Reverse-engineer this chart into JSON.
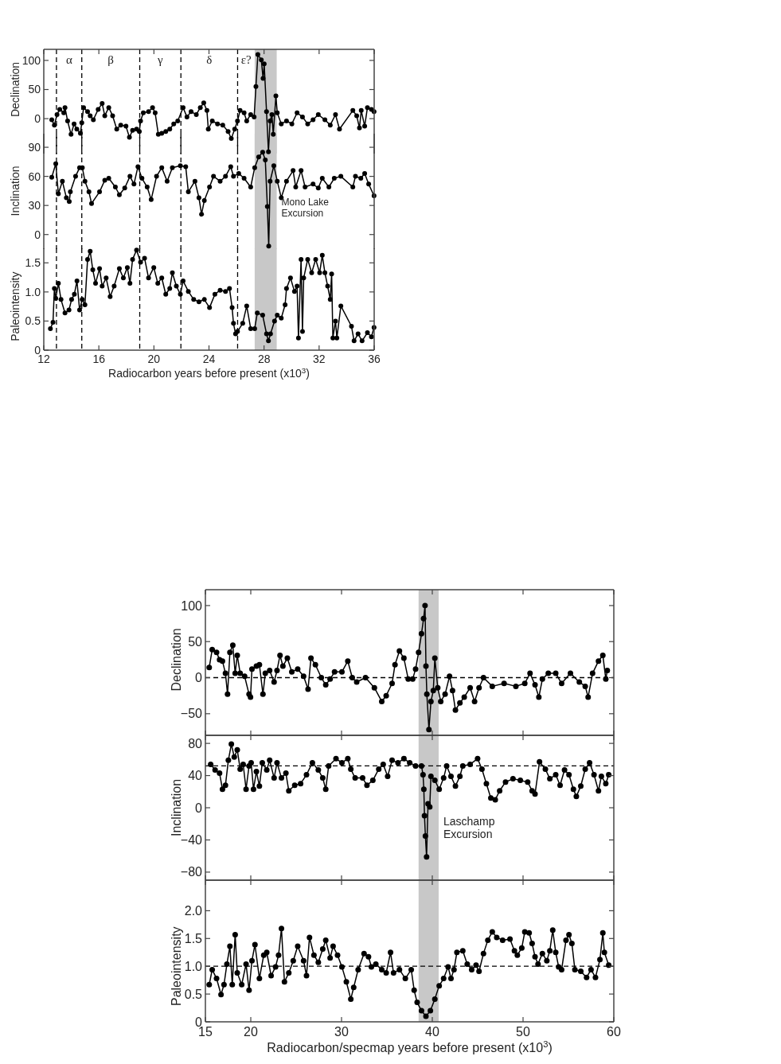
{
  "chart_data": [
    {
      "type": "line",
      "ylabel": "Declination",
      "xlim": [
        12,
        36
      ],
      "xticks": [
        12,
        16,
        20,
        24,
        28,
        32,
        36
      ],
      "ylim": [
        -60,
        119
      ],
      "yticks": [
        0,
        50,
        100
      ],
      "tick_labels": "y",
      "marker": "circle",
      "line_style": "solid",
      "color": "#000000",
      "x": [
        12.58,
        12.77,
        12.96,
        13.16,
        13.45,
        13.54,
        13.73,
        13.98,
        14.2,
        14.4,
        14.66,
        14.76,
        14.89,
        15.18,
        15.37,
        15.6,
        15.95,
        16.24,
        16.43,
        16.72,
        17.0,
        17.3,
        17.59,
        17.97,
        18.22,
        18.45,
        18.74,
        18.94,
        19.03,
        19.23,
        19.61,
        19.9,
        20.09,
        20.32,
        20.57,
        20.86,
        21.15,
        21.44,
        21.73,
        22.12,
        22.4,
        22.7,
        23.08,
        23.37,
        23.62,
        23.85,
        23.95,
        24.24,
        24.62,
        25.0,
        25.39,
        25.62,
        25.87,
        26.07,
        26.26,
        26.55,
        26.74,
        27.03,
        27.28,
        27.41,
        27.55,
        27.8,
        27.93,
        28.01,
        28.18,
        28.32,
        28.44,
        28.57,
        28.67,
        28.86,
        28.96,
        29.25,
        29.63,
        30.02,
        30.4,
        30.79,
        31.17,
        31.56,
        31.94,
        32.42,
        32.81,
        33.19,
        33.48,
        34.45,
        34.73,
        34.93,
        35.06,
        35.31,
        35.51,
        35.8,
        35.99
      ],
      "values": [
        -2,
        -11,
        7,
        16,
        10,
        19,
        -4,
        -27,
        -9,
        -18,
        -25,
        -7,
        19,
        12,
        5,
        -2,
        16,
        26,
        5,
        19,
        5,
        -18,
        -11,
        -13,
        -32,
        -20,
        -18,
        -22,
        -4,
        10,
        12,
        19,
        10,
        -27,
        -25,
        -22,
        -18,
        -9,
        -4,
        19,
        3,
        12,
        7,
        19,
        27,
        14,
        -18,
        -4,
        -9,
        -11,
        -22,
        -34,
        -18,
        -4,
        14,
        10,
        -4,
        7,
        3,
        55,
        110,
        101,
        69,
        94,
        12,
        -57,
        -4,
        7,
        -27,
        39,
        10,
        -9,
        -4,
        -9,
        10,
        3,
        -9,
        -2,
        7,
        -2,
        -11,
        7,
        -18,
        14,
        5,
        -16,
        14,
        -13,
        19,
        16,
        12
      ],
      "ref_lines": [
        {
          "axis": "x",
          "value": 12.92,
          "line_style": "dashed"
        },
        {
          "axis": "x",
          "value": 14.76,
          "line_style": "dashed"
        },
        {
          "axis": "x",
          "value": 18.97,
          "line_style": "dashed"
        },
        {
          "axis": "x",
          "value": 21.96,
          "line_style": "dashed"
        },
        {
          "axis": "x",
          "value": 26.08,
          "line_style": "dashed"
        }
      ],
      "bands": [
        {
          "axis": "x",
          "from": 27.32,
          "to": 28.92,
          "color": "#c8c8c8"
        }
      ],
      "annotations": [
        "α",
        "β",
        "γ",
        "δ",
        "ε?"
      ]
    },
    {
      "type": "line",
      "ylabel": "Inclination",
      "xlim": [
        12,
        36
      ],
      "xticks": [
        12,
        16,
        20,
        24,
        28,
        32,
        36
      ],
      "ylim": [
        -15,
        104
      ],
      "yticks": [
        0,
        30,
        60,
        90
      ],
      "tick_labels": "y",
      "marker": "circle",
      "line_style": "solid",
      "color": "#000000",
      "x": [
        12.58,
        12.87,
        13.06,
        13.35,
        13.64,
        13.85,
        13.93,
        14.31,
        14.6,
        14.8,
        14.99,
        15.28,
        15.47,
        16.05,
        16.43,
        16.72,
        17.2,
        17.49,
        17.88,
        18.26,
        18.55,
        18.84,
        19.13,
        19.51,
        19.8,
        20.19,
        20.57,
        20.96,
        21.34,
        21.92,
        22.31,
        22.5,
        22.98,
        23.27,
        23.46,
        23.66,
        24.04,
        24.33,
        24.81,
        25.2,
        25.58,
        25.78,
        26.16,
        26.55,
        27.03,
        27.32,
        27.61,
        27.9,
        28.09,
        28.24,
        28.34,
        28.44,
        28.71,
        28.96,
        29.25,
        29.63,
        30.11,
        30.3,
        30.69,
        30.98,
        31.56,
        31.94,
        32.23,
        32.71,
        33.1,
        33.58,
        34.45,
        34.64,
        35.03,
        35.31,
        35.6,
        35.99
      ],
      "values": [
        59,
        73,
        42,
        55,
        38,
        34,
        44,
        60,
        69,
        69,
        55,
        44,
        32,
        44,
        56,
        58,
        49,
        41,
        48,
        60,
        52,
        70,
        58,
        49,
        36,
        60,
        69,
        55,
        69,
        71,
        70,
        44,
        55,
        38,
        21,
        35,
        49,
        60,
        55,
        60,
        70,
        60,
        63,
        58,
        49,
        69,
        80,
        85,
        77,
        29,
        -12,
        55,
        71,
        55,
        38,
        55,
        66,
        49,
        66,
        49,
        52,
        48,
        58,
        49,
        58,
        60,
        49,
        60,
        58,
        63,
        52,
        40
      ],
      "ref_lines": [
        {
          "axis": "x",
          "value": 12.92,
          "line_style": "dashed"
        },
        {
          "axis": "x",
          "value": 14.76,
          "line_style": "dashed"
        },
        {
          "axis": "x",
          "value": 18.97,
          "line_style": "dashed"
        },
        {
          "axis": "x",
          "value": 21.96,
          "line_style": "dashed"
        },
        {
          "axis": "x",
          "value": 26.08,
          "line_style": "dashed"
        }
      ],
      "bands": [
        {
          "axis": "x",
          "from": 27.32,
          "to": 28.92,
          "color": "#c8c8c8"
        }
      ],
      "annotations": [
        "Mono Lake Excursion"
      ]
    },
    {
      "type": "line",
      "ylabel": "Paleointensity",
      "xlabel": "Radiocarbon years before present (x10$^{3}$)",
      "xlim": [
        12,
        36
      ],
      "xticks": [
        12,
        16,
        20,
        24,
        28,
        32,
        36
      ],
      "ylim": [
        0,
        1.75
      ],
      "yticks": [
        0,
        {
          "value": 0.5,
          "label": "0.5"
        },
        {
          "value": 1,
          "label": "1.0"
        },
        {
          "value": 1.5,
          "label": "1.5"
        }
      ],
      "marker": "circle",
      "line_style": "solid",
      "color": "#000000",
      "x": [
        12.48,
        12.67,
        12.77,
        12.87,
        13.06,
        13.25,
        13.54,
        13.83,
        14.02,
        14.22,
        14.41,
        14.6,
        14.79,
        14.99,
        15.18,
        15.37,
        15.56,
        15.76,
        16.05,
        16.24,
        16.53,
        16.82,
        17.11,
        17.49,
        17.78,
        18.07,
        18.26,
        18.45,
        18.74,
        19.03,
        19.32,
        19.61,
        19.99,
        20.28,
        20.57,
        20.86,
        21.15,
        21.34,
        21.63,
        21.92,
        22.12,
        22.5,
        22.89,
        23.27,
        23.66,
        24.04,
        24.43,
        24.81,
        25.2,
        25.49,
        25.68,
        25.78,
        25.93,
        26.07,
        26.45,
        26.74,
        27.03,
        27.32,
        27.51,
        27.9,
        28.18,
        28.32,
        28.47,
        28.76,
        28.96,
        29.25,
        29.53,
        29.63,
        29.92,
        30.21,
        30.4,
        30.5,
        30.69,
        30.79,
        30.88,
        31.17,
        31.46,
        31.75,
        32.04,
        32.23,
        32.42,
        32.62,
        32.81,
        32.91,
        33.0,
        33.19,
        33.29,
        33.58,
        34.35,
        34.54,
        34.83,
        35.12,
        35.51,
        35.8,
        35.99
      ],
      "values": [
        0.37,
        0.48,
        1.06,
        0.89,
        1.15,
        0.87,
        0.64,
        0.69,
        0.87,
        0.96,
        1.19,
        0.69,
        0.87,
        0.78,
        1.56,
        1.7,
        1.38,
        1.15,
        1.4,
        1.1,
        1.24,
        0.92,
        1.1,
        1.4,
        1.24,
        1.42,
        1.15,
        1.56,
        1.72,
        1.51,
        1.58,
        1.24,
        1.42,
        1.15,
        1.24,
        0.96,
        1.06,
        1.33,
        1.1,
        0.96,
        1.19,
        1.01,
        0.87,
        0.83,
        0.87,
        0.73,
        0.96,
        1.03,
        1.01,
        1.06,
        0.73,
        0.46,
        0.28,
        0.32,
        0.46,
        0.76,
        0.37,
        0.37,
        0.64,
        0.6,
        0.28,
        0.16,
        0.28,
        0.5,
        0.6,
        0.55,
        0.78,
        1.06,
        1.24,
        1.01,
        1.1,
        0.21,
        1.56,
        0.32,
        1.24,
        1.56,
        1.33,
        1.56,
        1.33,
        1.63,
        1.33,
        1.1,
        0.87,
        1.31,
        0.21,
        0.5,
        0.21,
        0.76,
        0.41,
        0.16,
        0.28,
        0.16,
        0.3,
        0.23,
        0.39
      ],
      "ref_lines": [
        {
          "axis": "x",
          "value": 12.92,
          "line_style": "dashed"
        },
        {
          "axis": "x",
          "value": 14.76,
          "line_style": "dashed"
        },
        {
          "axis": "x",
          "value": 18.97,
          "line_style": "dashed"
        },
        {
          "axis": "x",
          "value": 21.96,
          "line_style": "dashed"
        },
        {
          "axis": "x",
          "value": 26.08,
          "line_style": "dashed"
        }
      ],
      "bands": [
        {
          "axis": "x",
          "from": 27.32,
          "to": 28.92,
          "color": "#c8c8c8"
        }
      ]
    },
    {
      "type": "line",
      "ylabel": "Declination",
      "xlim": [
        15,
        60
      ],
      "xticks": [
        15,
        20,
        30,
        40,
        50,
        60
      ],
      "ylim": [
        -80,
        122
      ],
      "yticks": [
        {
          "value": -50,
          "label": "−50"
        },
        0,
        50,
        100
      ],
      "tick_labels": "y",
      "marker": "circle",
      "line_style": "solid",
      "color": "#000000",
      "x": [
        15.42,
        15.75,
        16.23,
        16.56,
        16.88,
        17.21,
        17.44,
        17.7,
        18.02,
        18.28,
        18.51,
        18.83,
        19.32,
        19.81,
        19.97,
        20.13,
        20.62,
        20.95,
        21.34,
        21.6,
        22.08,
        22.57,
        22.89,
        23.22,
        23.54,
        24.03,
        24.52,
        25.17,
        25.82,
        26.31,
        26.63,
        27.12,
        27.77,
        28.26,
        28.74,
        29.23,
        30.04,
        30.69,
        31.18,
        31.67,
        32.64,
        33.62,
        34.43,
        34.92,
        35.57,
        35.89,
        36.38,
        36.87,
        37.35,
        37.84,
        38.16,
        38.49,
        38.81,
        39.04,
        39.2,
        39.3,
        39.4,
        39.63,
        39.85,
        40.11,
        40.28,
        40.6,
        40.93,
        41.41,
        41.9,
        42.23,
        42.55,
        43.04,
        43.52,
        44.17,
        44.66,
        45.15,
        45.64,
        46.61,
        47.91,
        49.21,
        50.19,
        50.77,
        51.32,
        51.74,
        52.13,
        52.78,
        53.6,
        54.25,
        55.22,
        56.2,
        56.85,
        57.17,
        57.66,
        58.31,
        58.79,
        59.12,
        59.28
      ],
      "values": [
        14,
        39,
        35,
        25,
        23,
        6,
        -23,
        35,
        45,
        6,
        31,
        6,
        2,
        -23,
        -27,
        12,
        16,
        18,
        -23,
        6,
        10,
        -6,
        10,
        31,
        16,
        27,
        8,
        12,
        2,
        -16,
        27,
        18,
        0,
        -10,
        -2,
        8,
        8,
        23,
        0,
        -6,
        0,
        -14,
        -33,
        -25,
        -8,
        18,
        37,
        27,
        -2,
        -2,
        12,
        35,
        61,
        82,
        100,
        16,
        -23,
        -72,
        -33,
        -18,
        27,
        -14,
        -33,
        -23,
        2,
        -18,
        -45,
        -35,
        -27,
        -14,
        -33,
        -14,
        0,
        -12,
        -8,
        -12,
        -8,
        6,
        -10,
        -27,
        -2,
        6,
        6,
        -8,
        6,
        -6,
        -12,
        -27,
        6,
        23,
        31,
        -2,
        10
      ],
      "ref_lines": [
        {
          "axis": "y",
          "value": 0,
          "line_style": "dashed"
        }
      ],
      "bands": [
        {
          "axis": "x",
          "from": 38.49,
          "to": 40.7,
          "color": "#c8c8c8"
        }
      ]
    },
    {
      "type": "line",
      "ylabel": "Inclination",
      "xlim": [
        15,
        60
      ],
      "xticks": [
        15,
        20,
        30,
        40,
        50,
        60
      ],
      "ylim": [
        -90,
        90
      ],
      "yticks": [
        {
          "value": -80,
          "label": "−80"
        },
        {
          "value": -40,
          "label": "−40"
        },
        0,
        40,
        80
      ],
      "tick_labels": "y",
      "marker": "circle",
      "line_style": "solid",
      "color": "#000000",
      "x": [
        15.58,
        16.07,
        16.56,
        16.88,
        17.21,
        17.53,
        17.86,
        18.18,
        18.51,
        18.83,
        19.16,
        19.48,
        19.81,
        20.04,
        20.3,
        20.62,
        20.95,
        21.27,
        21.76,
        22.08,
        22.57,
        22.89,
        23.38,
        23.87,
        24.19,
        24.84,
        25.49,
        26.14,
        26.79,
        27.44,
        27.93,
        28.26,
        28.58,
        29.39,
        30.04,
        30.69,
        31.02,
        31.5,
        32.32,
        32.8,
        33.45,
        34.1,
        34.59,
        35.08,
        35.57,
        36.22,
        36.87,
        37.51,
        38.16,
        38.81,
        38.98,
        39.07,
        39.14,
        39.24,
        39.37,
        39.53,
        39.72,
        39.85,
        40.28,
        40.76,
        41.25,
        41.58,
        42.06,
        42.55,
        43.04,
        43.36,
        44.17,
        44.99,
        45.47,
        45.96,
        46.45,
        46.94,
        47.42,
        48.07,
        48.89,
        49.7,
        50.51,
        51.0,
        51.32,
        51.81,
        52.46,
        52.95,
        53.6,
        54.08,
        54.57,
        55.06,
        55.55,
        55.87,
        56.36,
        56.85,
        57.33,
        57.82,
        58.31,
        58.63,
        59.12,
        59.44
      ],
      "values": [
        54,
        47,
        43,
        23,
        28,
        59,
        79,
        63,
        72,
        48,
        54,
        23,
        52,
        56,
        23,
        45,
        27,
        56,
        47,
        59,
        37,
        56,
        37,
        43,
        21,
        28,
        30,
        41,
        56,
        47,
        37,
        23,
        52,
        61,
        56,
        61,
        48,
        37,
        37,
        28,
        34,
        48,
        54,
        39,
        59,
        56,
        61,
        56,
        52,
        52,
        41,
        23,
        -10,
        -35,
        -61,
        5,
        1,
        39,
        34,
        23,
        37,
        52,
        39,
        27,
        39,
        52,
        54,
        61,
        48,
        30,
        12,
        10,
        21,
        32,
        36,
        34,
        32,
        21,
        17,
        57,
        48,
        36,
        41,
        28,
        47,
        41,
        23,
        14,
        27,
        48,
        56,
        41,
        21,
        39,
        30,
        41
      ],
      "ref_lines": [
        {
          "axis": "y",
          "value": 52,
          "line_style": "dashed"
        }
      ],
      "bands": [
        {
          "axis": "x",
          "from": 38.49,
          "to": 40.7,
          "color": "#c8c8c8"
        }
      ],
      "annotations": [
        "Laschamp Excursion"
      ]
    },
    {
      "type": "line",
      "ylabel": "Paleointensity",
      "xlabel": "Radiocarbon/specmap years before present (x10$^{3}$)",
      "xlim": [
        15,
        60
      ],
      "xticks": [
        15,
        20,
        30,
        40,
        50,
        60
      ],
      "ylim": [
        0,
        2.55
      ],
      "yticks": [
        0,
        {
          "value": 0.5,
          "label": "0.5"
        },
        {
          "value": 1,
          "label": "1.0"
        },
        {
          "value": 1.5,
          "label": "1.5"
        },
        {
          "value": 2,
          "label": "2.0"
        }
      ],
      "marker": "circle",
      "line_style": "solid",
      "color": "#000000",
      "x": [
        15.42,
        15.75,
        16.23,
        16.72,
        17.05,
        17.37,
        17.7,
        17.96,
        18.28,
        18.51,
        19.0,
        19.48,
        19.81,
        20.13,
        20.46,
        20.95,
        21.43,
        21.76,
        22.24,
        22.73,
        23.06,
        23.38,
        23.71,
        24.19,
        24.68,
        25.17,
        25.82,
        26.14,
        26.47,
        26.96,
        27.44,
        27.93,
        28.26,
        28.74,
        29.07,
        29.56,
        30.04,
        30.53,
        31.02,
        31.34,
        31.83,
        32.48,
        32.97,
        33.29,
        33.78,
        34.43,
        34.92,
        35.4,
        35.73,
        36.38,
        37.03,
        37.68,
        38.0,
        38.33,
        38.81,
        39.3,
        39.79,
        40.28,
        40.76,
        41.25,
        41.74,
        42.06,
        42.39,
        42.71,
        43.36,
        43.85,
        44.34,
        44.82,
        45.15,
        45.64,
        46.12,
        46.61,
        47.1,
        47.75,
        48.56,
        49.05,
        49.37,
        49.86,
        50.19,
        50.67,
        51.0,
        51.32,
        51.65,
        52.13,
        52.62,
        52.95,
        53.27,
        53.6,
        53.92,
        54.25,
        54.73,
        55.06,
        55.38,
        55.71,
        56.36,
        57.0,
        57.49,
        57.98,
        58.47,
        58.79,
        58.96,
        59.44
      ],
      "values": [
        0.67,
        0.94,
        0.78,
        0.49,
        0.67,
        1.04,
        1.36,
        0.67,
        1.57,
        0.88,
        0.67,
        1.04,
        0.57,
        1.1,
        1.39,
        0.78,
        1.2,
        1.25,
        0.83,
        0.99,
        1.2,
        1.68,
        0.72,
        0.88,
        1.1,
        1.36,
        1.1,
        0.83,
        1.52,
        1.2,
        1.07,
        1.31,
        1.47,
        1.15,
        1.36,
        1.2,
        0.99,
        0.72,
        0.41,
        0.62,
        0.94,
        1.23,
        1.17,
        0.99,
        1.04,
        0.94,
        0.88,
        1.25,
        0.88,
        0.94,
        0.78,
        0.94,
        0.57,
        0.35,
        0.2,
        0.1,
        0.2,
        0.41,
        0.65,
        0.78,
        0.99,
        0.78,
        0.94,
        1.25,
        1.28,
        1.04,
        0.94,
        1.02,
        0.91,
        1.23,
        1.47,
        1.62,
        1.52,
        1.47,
        1.49,
        1.28,
        1.2,
        1.33,
        1.62,
        1.6,
        1.41,
        1.17,
        1.04,
        1.23,
        1.1,
        1.28,
        1.65,
        1.25,
        0.99,
        0.94,
        1.47,
        1.57,
        1.41,
        0.94,
        0.91,
        0.8,
        0.94,
        0.8,
        1.12,
        1.6,
        1.25,
        1.02
      ],
      "ref_lines": [
        {
          "axis": "y",
          "value": 1,
          "line_style": "dashed"
        }
      ],
      "bands": [
        {
          "axis": "x",
          "from": 38.49,
          "to": 40.7,
          "color": "#c8c8c8"
        }
      ]
    }
  ]
}
